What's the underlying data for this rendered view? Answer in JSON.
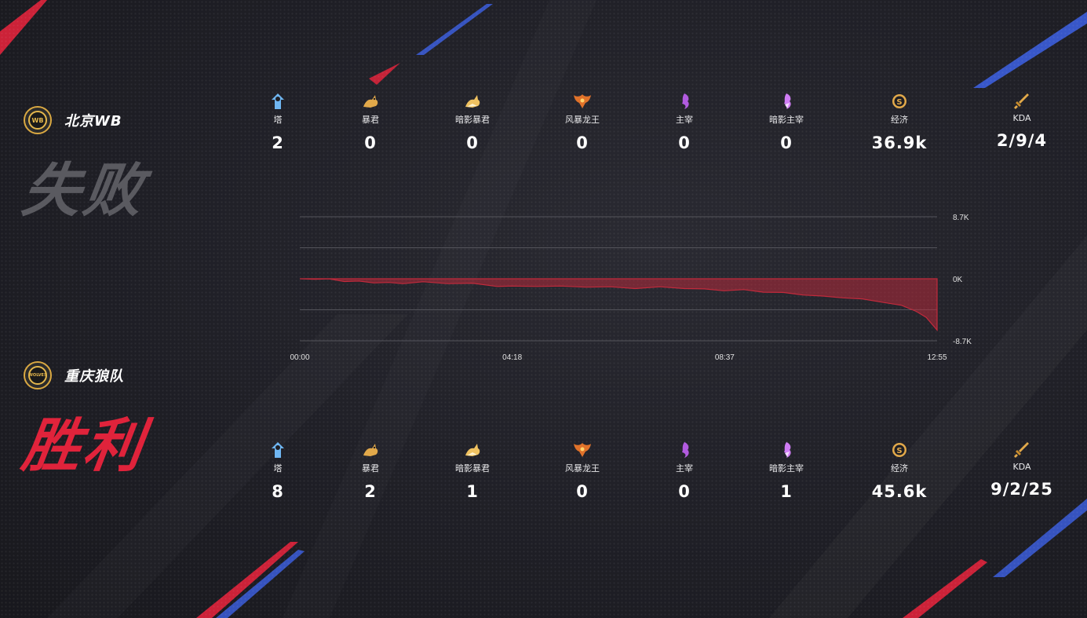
{
  "teams": [
    {
      "name": "北京WB",
      "logo_text": "WB",
      "result": "失败",
      "result_color": "#5a5a60",
      "stats": [
        {
          "key": "tower",
          "label": "塔",
          "value": "2",
          "icon": "tower-icon"
        },
        {
          "key": "tyrant",
          "label": "暴君",
          "value": "0",
          "icon": "tyrant-icon"
        },
        {
          "key": "shadow_tyrant",
          "label": "暗影暴君",
          "value": "0",
          "icon": "shadow-tyrant-icon"
        },
        {
          "key": "storm_dragon",
          "label": "风暴龙王",
          "value": "0",
          "icon": "storm-dragon-icon"
        },
        {
          "key": "overlord",
          "label": "主宰",
          "value": "0",
          "icon": "overlord-icon"
        },
        {
          "key": "shadow_overlord",
          "label": "暗影主宰",
          "value": "0",
          "icon": "shadow-overlord-icon"
        },
        {
          "key": "gold",
          "label": "经济",
          "value": "36.9k",
          "icon": "gold-coin-icon"
        },
        {
          "key": "kda",
          "label": "KDA",
          "value": "2/9/4",
          "icon": "sword-icon"
        }
      ]
    },
    {
      "name": "重庆狼队",
      "logo_text": "WOLVES",
      "result": "胜利",
      "result_color": "#e0233b",
      "stats": [
        {
          "key": "tower",
          "label": "塔",
          "value": "8",
          "icon": "tower-icon"
        },
        {
          "key": "tyrant",
          "label": "暴君",
          "value": "2",
          "icon": "tyrant-icon"
        },
        {
          "key": "shadow_tyrant",
          "label": "暗影暴君",
          "value": "1",
          "icon": "shadow-tyrant-icon"
        },
        {
          "key": "storm_dragon",
          "label": "风暴龙王",
          "value": "0",
          "icon": "storm-dragon-icon"
        },
        {
          "key": "overlord",
          "label": "主宰",
          "value": "0",
          "icon": "overlord-icon"
        },
        {
          "key": "shadow_overlord",
          "label": "暗影主宰",
          "value": "1",
          "icon": "shadow-overlord-icon"
        },
        {
          "key": "gold",
          "label": "经济",
          "value": "45.6k",
          "icon": "gold-coin-icon"
        },
        {
          "key": "kda",
          "label": "KDA",
          "value": "9/2/25",
          "icon": "sword-icon"
        }
      ]
    }
  ],
  "colors": {
    "accent_red": "#e0233b",
    "accent_blue": "#3b5ddb",
    "gold_icon": "#e2a94a",
    "purple_icon": "#b25be0",
    "blue_icon": "#6fb6f2"
  },
  "chart_data": {
    "type": "area",
    "title": "",
    "xlabel": "",
    "ylabel": "",
    "x_ticks": [
      "00:00",
      "04:18",
      "08:37",
      "12:55"
    ],
    "y_ticks": [
      "8.7K",
      "0K",
      "-8.7K"
    ],
    "ylim": [
      -8.7,
      8.7
    ],
    "xlim_minutes": [
      0,
      12.92
    ],
    "grid": true,
    "series": [
      {
        "color": "#c22a3c",
        "x_minutes": [
          0,
          0.3,
          0.6,
          0.9,
          1.2,
          1.5,
          1.8,
          2.1,
          2.5,
          3.0,
          3.5,
          4.0,
          4.3,
          4.8,
          5.3,
          5.8,
          6.3,
          6.8,
          7.3,
          7.8,
          8.2,
          8.6,
          9.0,
          9.4,
          9.8,
          10.2,
          10.6,
          11.0,
          11.4,
          11.8,
          12.2,
          12.5,
          12.7,
          12.92
        ],
        "values_k": [
          0,
          0.0,
          -0.1,
          -0.3,
          -0.4,
          -0.5,
          -0.6,
          -0.6,
          -0.5,
          -0.6,
          -0.7,
          -1.0,
          -1.1,
          -1.0,
          -1.1,
          -1.1,
          -1.2,
          -1.3,
          -1.2,
          -1.3,
          -1.5,
          -1.6,
          -1.6,
          -1.8,
          -2.0,
          -2.2,
          -2.5,
          -2.6,
          -2.9,
          -3.2,
          -3.8,
          -4.5,
          -5.5,
          -7.2
        ]
      }
    ]
  }
}
